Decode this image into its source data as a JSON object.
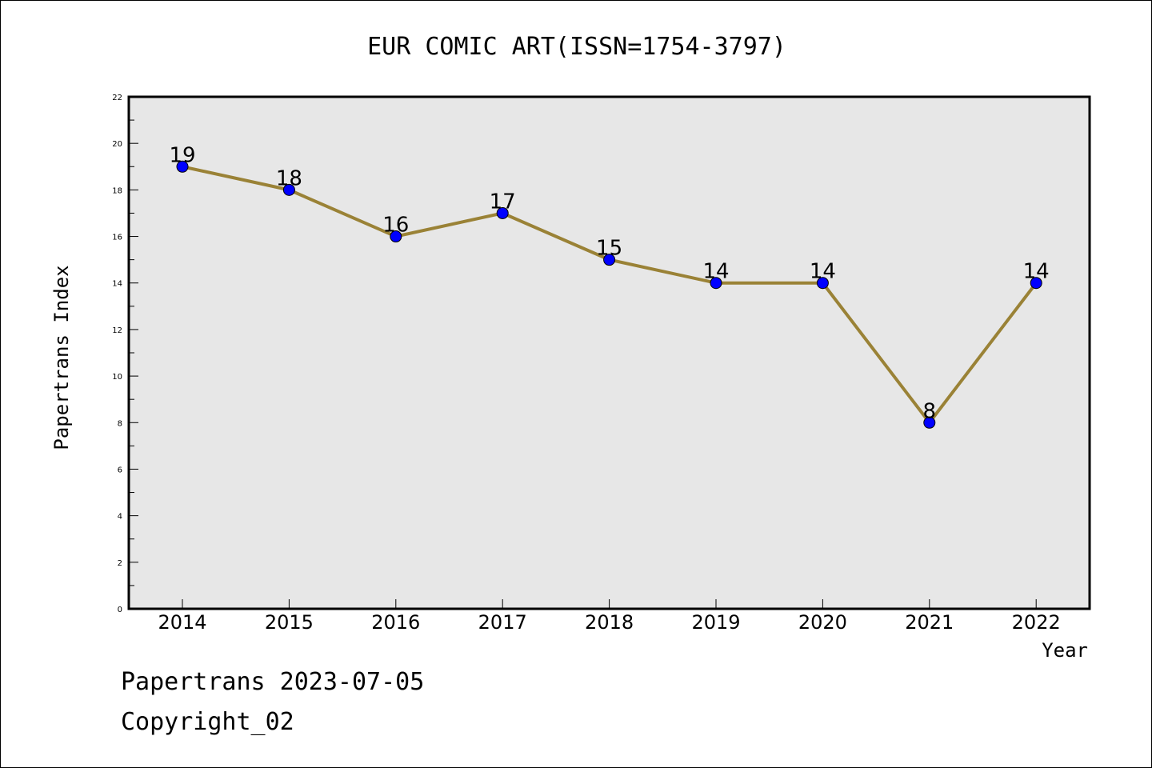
{
  "chart_data": {
    "type": "line",
    "title": "EUR COMIC ART(ISSN=1754-3797)",
    "xlabel": "Year",
    "ylabel": "Papertrans Index",
    "x": [
      "2014",
      "2015",
      "2016",
      "2017",
      "2018",
      "2019",
      "2020",
      "2021",
      "2022"
    ],
    "series": [
      {
        "values": [
          19,
          18,
          16,
          17,
          15,
          14,
          14,
          8,
          14
        ]
      }
    ],
    "ylim": [
      0,
      22
    ],
    "yticks": [
      0,
      2,
      4,
      6,
      8,
      10,
      12,
      14,
      16,
      18,
      20,
      22
    ],
    "data_labels": [
      "19",
      "18",
      "16",
      "17",
      "15",
      "14",
      "14",
      "8",
      "14"
    ],
    "grid": false,
    "colors": {
      "line": "#9a8236",
      "marker": "#0000ff",
      "plot_bg": "#e7e7e7"
    }
  },
  "footer": {
    "line1": "Papertrans 2023-07-05",
    "line2": "Copyright_02"
  }
}
